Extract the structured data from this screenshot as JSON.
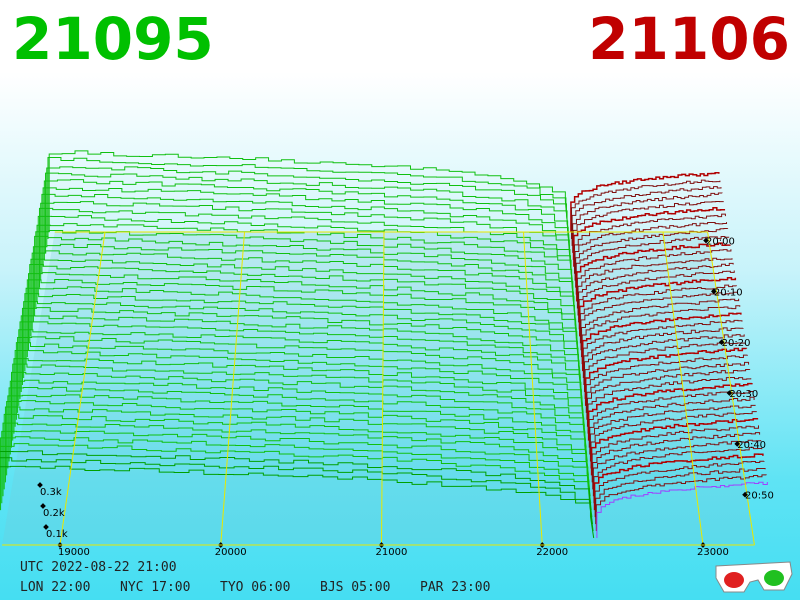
{
  "bid": "21095",
  "ask": "21106",
  "price_axis": [
    "19000",
    "20000",
    "21000",
    "22000",
    "23000"
  ],
  "time_axis": [
    "20:00",
    "20:10",
    "20:20",
    "20:30",
    "20:40",
    "20:50"
  ],
  "depth_axis": [
    "0.3k",
    "0.2k",
    "0.1k"
  ],
  "footer": {
    "utc": "UTC 2022-08-22 21:00",
    "zones": [
      "LON 22:00",
      "NYC 17:00",
      "TYO 06:00",
      "BJS 05:00",
      "PAR 23:00"
    ]
  }
}
